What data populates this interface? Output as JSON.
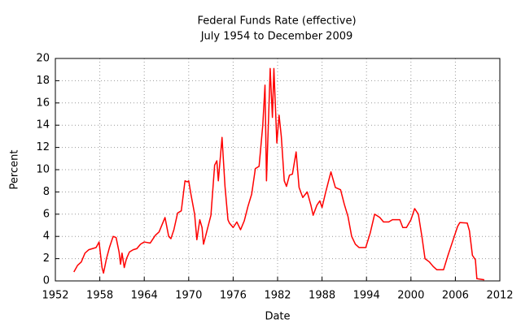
{
  "chart_data": {
    "type": "line",
    "title": "Federal Funds Rate (effective)",
    "subtitle": "July 1954 to December 2009",
    "x_label": "Date",
    "y_label": "Percent",
    "xlim": [
      1952,
      2012
    ],
    "xticks": [
      1952,
      1958,
      1964,
      1970,
      1976,
      1982,
      1988,
      1994,
      2000,
      2006,
      2012
    ],
    "ylim": [
      0,
      20
    ],
    "yticks": [
      0,
      2,
      4,
      6,
      8,
      10,
      12,
      14,
      16,
      18,
      20
    ],
    "grid": true,
    "x": [
      1954.5,
      1955.0,
      1955.5,
      1956.0,
      1956.5,
      1957.0,
      1957.5,
      1957.9,
      1958.3,
      1958.5,
      1958.9,
      1959.3,
      1959.8,
      1960.2,
      1960.6,
      1960.8,
      1961.0,
      1961.3,
      1961.6,
      1962.0,
      1962.5,
      1963.0,
      1963.5,
      1964.0,
      1964.8,
      1965.5,
      1966.0,
      1966.8,
      1967.3,
      1967.6,
      1968.0,
      1968.5,
      1969.0,
      1969.5,
      1969.8,
      1970.0,
      1970.3,
      1970.8,
      1971.1,
      1971.5,
      1971.8,
      1972.0,
      1972.5,
      1973.0,
      1973.5,
      1973.8,
      1974.0,
      1974.5,
      1974.9,
      1975.3,
      1975.5,
      1976.0,
      1976.5,
      1977.0,
      1977.5,
      1978.0,
      1978.5,
      1979.0,
      1979.5,
      1980.0,
      1980.3,
      1980.5,
      1980.8,
      1981.0,
      1981.3,
      1981.5,
      1981.9,
      1982.2,
      1982.5,
      1982.9,
      1983.2,
      1983.6,
      1984.0,
      1984.5,
      1984.9,
      1985.4,
      1986.0,
      1986.5,
      1986.8,
      1987.3,
      1987.7,
      1988.0,
      1988.5,
      1989.2,
      1989.8,
      1990.5,
      1991.0,
      1991.5,
      1992.0,
      1992.5,
      1993.0,
      1993.9,
      1994.5,
      1995.1,
      1995.8,
      1996.3,
      1997.0,
      1997.5,
      1998.5,
      1998.9,
      1999.4,
      2000.0,
      2000.5,
      2001.0,
      2001.5,
      2001.9,
      2002.5,
      2003.0,
      2003.5,
      2004.4,
      2005.0,
      2005.6,
      2006.3,
      2006.6,
      2007.6,
      2007.9,
      2008.3,
      2008.7,
      2008.9,
      2009.9
    ],
    "series": [
      {
        "name": "Federal Funds Rate",
        "color": "#ff0000",
        "values": [
          0.8,
          1.4,
          1.7,
          2.5,
          2.8,
          2.9,
          3.0,
          3.5,
          1.2,
          0.7,
          2.0,
          3.0,
          4.0,
          3.9,
          2.6,
          1.5,
          2.5,
          1.2,
          2.0,
          2.6,
          2.8,
          2.9,
          3.3,
          3.5,
          3.4,
          4.1,
          4.4,
          5.7,
          4.0,
          3.8,
          4.6,
          6.1,
          6.3,
          9.0,
          8.9,
          9.0,
          7.8,
          6.0,
          3.7,
          5.5,
          4.8,
          3.3,
          4.6,
          5.9,
          10.4,
          10.8,
          9.0,
          12.9,
          8.5,
          5.5,
          5.2,
          4.8,
          5.3,
          4.6,
          5.4,
          6.7,
          7.8,
          10.1,
          10.3,
          14.0,
          17.6,
          9.0,
          15.0,
          19.1,
          14.7,
          19.1,
          12.4,
          14.9,
          13.0,
          9.0,
          8.5,
          9.5,
          9.6,
          11.6,
          8.4,
          7.5,
          8.0,
          6.8,
          5.9,
          6.8,
          7.2,
          6.6,
          8.0,
          9.8,
          8.4,
          8.2,
          6.9,
          5.8,
          4.0,
          3.3,
          3.0,
          3.0,
          4.3,
          6.0,
          5.7,
          5.3,
          5.3,
          5.5,
          5.5,
          4.8,
          4.8,
          5.5,
          6.5,
          6.0,
          3.9,
          2.0,
          1.7,
          1.3,
          1.0,
          1.0,
          2.3,
          3.5,
          4.9,
          5.25,
          5.2,
          4.5,
          2.3,
          1.9,
          0.2,
          0.1
        ]
      }
    ]
  }
}
